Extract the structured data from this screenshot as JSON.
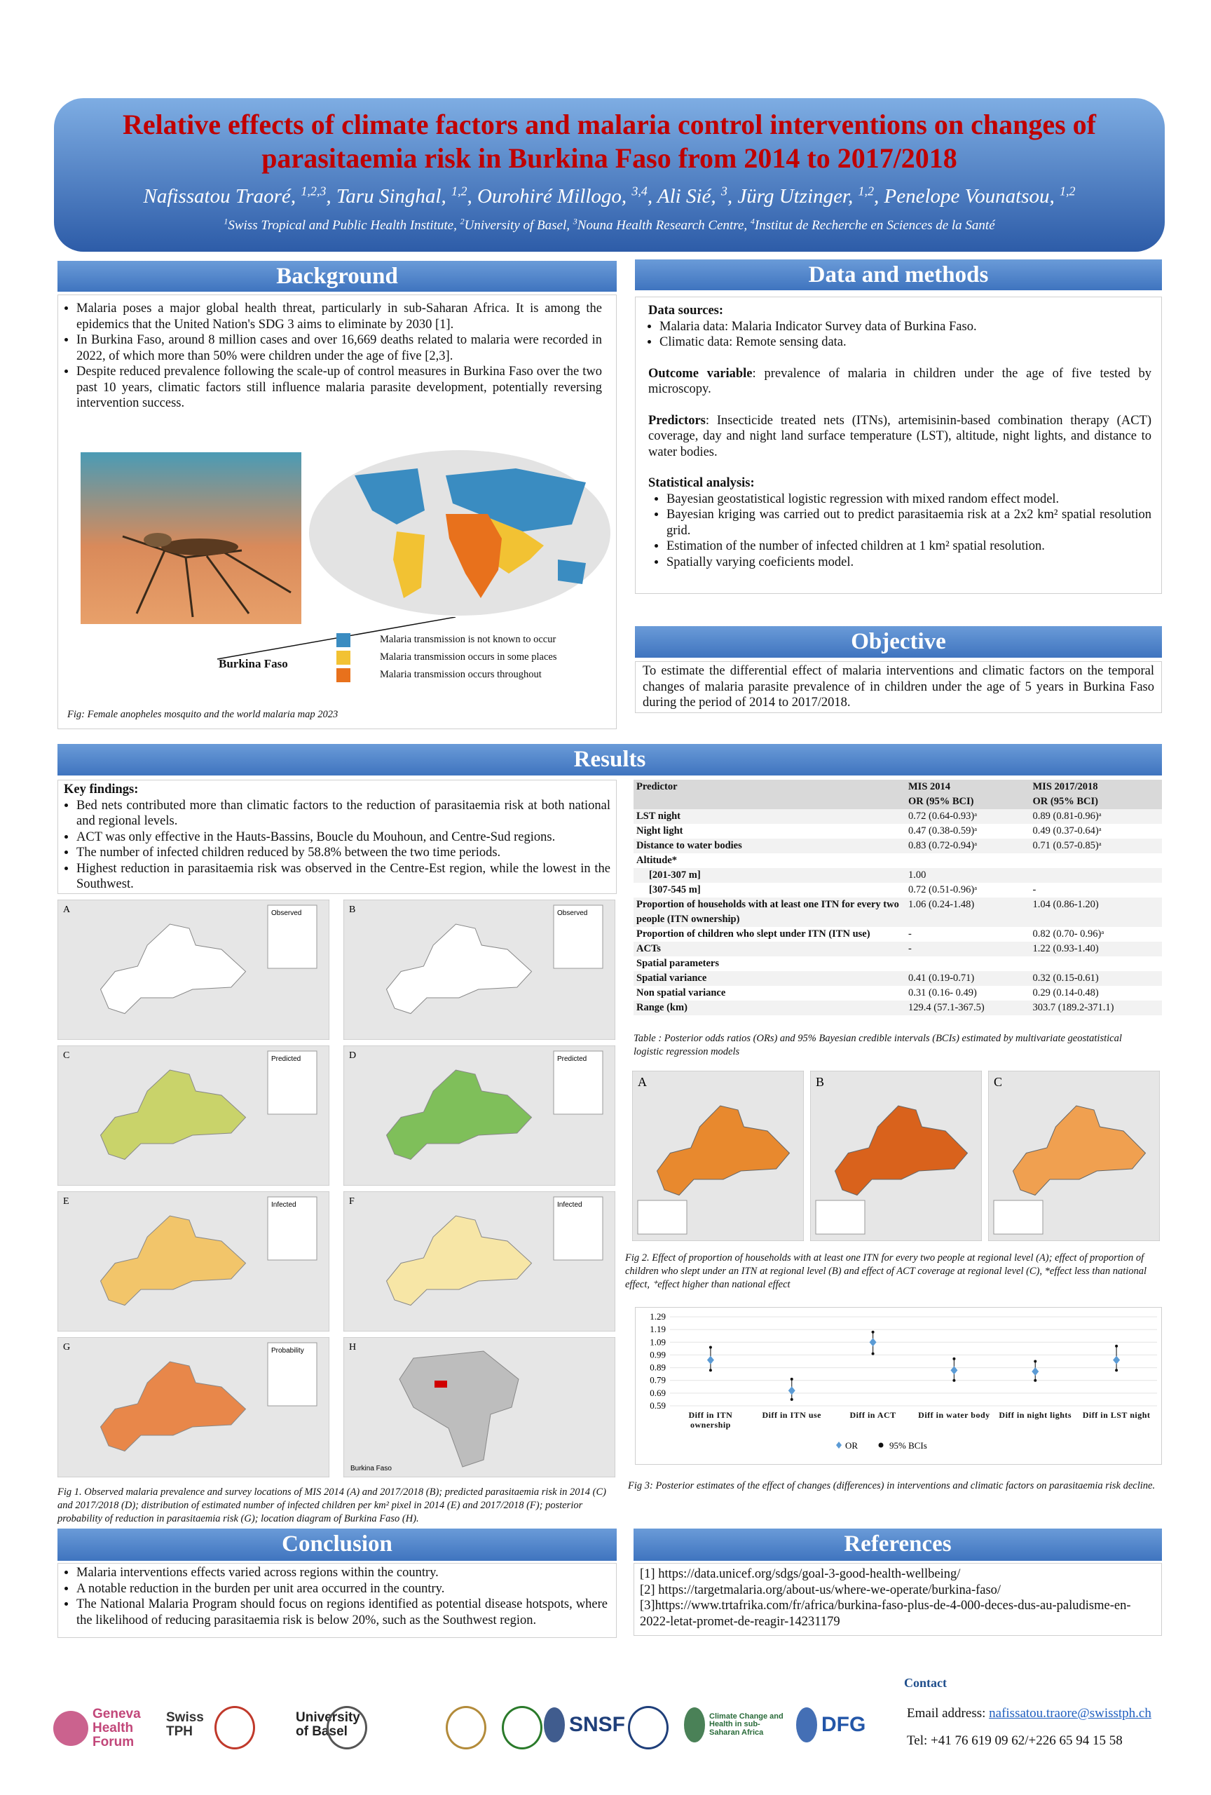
{
  "header": {
    "title": "Relative effects of climate factors and malaria control interventions on changes of parasitaemia risk in Burkina Faso from 2014 to 2017/2018",
    "authors": [
      {
        "name": "Nafissatou Traoré",
        "sup": "1,2,3"
      },
      {
        "name": "Taru Singhal",
        "sup": "1,2"
      },
      {
        "name": "Ourohiré Millogo",
        "sup": "3,4"
      },
      {
        "name": "Ali Sié",
        "sup": "3"
      },
      {
        "name": "Jürg Utzinger",
        "sup": "1,2"
      },
      {
        "name": "Penelope Vounatsou",
        "sup": "1,2"
      }
    ],
    "affiliations": [
      {
        "sup": "1",
        "name": "Swiss Tropical and Public Health Institute"
      },
      {
        "sup": "2",
        "name": "University of Basel"
      },
      {
        "sup": "3",
        "name": "Nouna Health Research Centre"
      },
      {
        "sup": "4",
        "name": "Institut de Recherche en Sciences de la Santé"
      }
    ]
  },
  "background": {
    "title": "Background",
    "bullets": [
      "Malaria poses a major global health threat, particularly in sub-Saharan Africa. It is among the epidemics that the United Nation's SDG 3 aims to eliminate by 2030 [1].",
      "In Burkina Faso, around 8 million cases and over 16,669 deaths related to malaria were recorded in 2022, of which more than 50% were children under the age of five [2,3].",
      "Despite reduced prevalence following the scale-up of control measures in Burkina Faso over the two past 10 years, climatic factors still influence malaria parasite development, potentially reversing intervention success."
    ],
    "figure": {
      "legend": [
        "Malaria transmission is not known to occur",
        "Malaria transmission occurs in some places",
        "Malaria transmission occurs throughout"
      ],
      "legend_colors": [
        "#3a8cc1",
        "#f2c233",
        "#e8711c"
      ],
      "label": "Burkina Faso",
      "caption": "Fig: Female anopheles mosquito and the world malaria map 2023"
    }
  },
  "data_methods": {
    "title": "Data and methods",
    "data_sources": {
      "label": "Data sources:",
      "bullets": [
        "Malaria data: Malaria Indicator Survey data of Burkina Faso.",
        "Climatic data: Remote sensing data."
      ]
    },
    "outcome": {
      "label": "Outcome variable",
      "text": ": prevalence of malaria in children under the age of five tested by microscopy."
    },
    "predictors": {
      "label": "Predictors",
      "text": ": Insecticide treated nets (ITNs), artemisinin-based combination therapy (ACT) coverage, day and night land surface temperature (LST), altitude, night lights, and distance to water bodies."
    },
    "statistical": {
      "label": "Statistical analysis:",
      "bullets": [
        "Bayesian geostatistical logistic regression with mixed random effect model.",
        "Bayesian kriging was carried out to predict parasitaemia risk at a 2x2 km² spatial resolution grid.",
        "Estimation of the number of infected children at 1 km² spatial resolution.",
        "Spatially varying coeficients model."
      ]
    }
  },
  "objective": {
    "title": "Objective",
    "text": "To estimate the differential effect of malaria interventions and climatic factors on the temporal changes of malaria parasite prevalence of in children under the age of 5 years in Burkina Faso during the period of 2014 to 2017/2018."
  },
  "results": {
    "title": "Results",
    "key_findings": {
      "label": "Key findings:",
      "bullets": [
        "Bed nets contributed more than climatic factors to the reduction of parasitaemia risk at both national and regional levels.",
        "ACT was only effective in the Hauts-Bassins, Boucle du Mouhoun, and Centre-Sud regions.",
        "The number of infected children reduced by 58.8% between the two time periods.",
        "Highest reduction in parasitaemia risk was observed in the Centre-Est region, while the lowest in the Southwest."
      ]
    },
    "maps": [
      {
        "letter": "A",
        "legend": "Observed"
      },
      {
        "letter": "B",
        "legend": "Observed"
      },
      {
        "letter": "C",
        "legend": "Predicted"
      },
      {
        "letter": "D",
        "legend": "Predicted"
      },
      {
        "letter": "E",
        "legend": "Infected"
      },
      {
        "letter": "F",
        "legend": "Infected"
      },
      {
        "letter": "G",
        "legend": "Probability"
      },
      {
        "letter": "H",
        "legend": "Burkina Faso"
      }
    ],
    "fig1_caption": "Fig 1. Observed malaria prevalence and survey locations of MIS 2014 (A) and 2017/2018 (B); predicted parasitaemia risk in 2014 (C) and 2017/2018 (D); distribution of estimated number of infected children per km² pixel in 2014 (E) and 2017/2018 (F); posterior probability of reduction in parasitaemia risk (G); location diagram of Burkina Faso (H).",
    "table": {
      "header": [
        "Predictor",
        "MIS 2014",
        "MIS 2017/2018"
      ],
      "subheader": [
        "OR (95% BCI)",
        "OR (95% BCI)"
      ],
      "rows": [
        [
          "LST night",
          "0.72 (0.64-0.93)ᵃ",
          "0.89 (0.81-0.96)ᵃ"
        ],
        [
          "Night light",
          "0.47 (0.38-0.59)ᵃ",
          "0.49 (0.37-0.64)ᵃ"
        ],
        [
          "Distance to water bodies",
          "0.83 (0.72-0.94)ᵃ",
          "0.71 (0.57-0.85)ᵃ"
        ],
        [
          "Altitude*"
        ],
        [
          "[201-307 m]",
          "1.00"
        ],
        [
          "[307-545 m]",
          "0.72 (0.51-0.96)ᵃ",
          "-"
        ],
        [
          "Proportion of households with at least one ITN for every two people (ITN ownership)",
          "1.06 (0.24-1.48)",
          "1.04 (0.86-1.20)"
        ],
        [
          "Proportion of children who slept under ITN (ITN use)",
          "-",
          "0.82 (0.70- 0.96)ᵃ"
        ],
        [
          "ACTs",
          "-",
          "1.22 (0.93-1.40)"
        ],
        [
          "Spatial parameters"
        ],
        [
          "Spatial variance",
          "0.41 (0.19-0.71)",
          "0.32 (0.15-0.61)"
        ],
        [
          "Non spatial variance",
          "0.31 (0.16- 0.49)",
          "0.29 (0.14-0.48)"
        ],
        [
          "Range (km)",
          "129.4 (57.1-367.5)",
          "303.7 (189.2-371.1)"
        ]
      ],
      "caption": "Table : Posterior odds ratios (ORs) and 95% Bayesian credible intervals (BCIs) estimated by multivariate geostatistical logistic regression models"
    },
    "fig2": {
      "panels": [
        "A",
        "B",
        "C"
      ],
      "caption": "Fig 2. Effect of proportion of households with at least one ITN for every two people at regional level (A); effect of proportion of children who slept under an ITN at regional level (B) and effect of ACT coverage at regional level (C), *effect less than national effect, ⁺effect higher than national effect"
    },
    "fig3": {
      "type": "errorbar",
      "categories": [
        "Diff in ITN ownership",
        "Diff in ITN use",
        "Diff in ACT",
        "Diff in water body",
        "Diff in night lights",
        "Diff in LST night"
      ],
      "values": [
        0.95,
        0.71,
        1.09,
        0.87,
        0.86,
        0.95
      ],
      "lower": [
        0.87,
        0.64,
        1.0,
        0.79,
        0.79,
        0.87
      ],
      "upper": [
        1.05,
        0.8,
        1.17,
        0.96,
        0.94,
        1.06
      ],
      "ylim": [
        0.59,
        1.29
      ],
      "yticks": [
        0.59,
        0.69,
        0.79,
        0.89,
        0.99,
        1.09,
        1.19,
        1.29
      ],
      "legend": [
        "OR",
        "95% BCIs"
      ],
      "color": "#5b9bd5",
      "caption": "Fig 3: Posterior estimates of the effect of changes (differences) in interventions and climatic factors on parasitaemia risk decline."
    }
  },
  "conclusion": {
    "title": "Conclusion",
    "bullets": [
      "Malaria interventions effects varied across regions within the country.",
      "A notable reduction in the burden per unit area occurred in the country.",
      "The National Malaria Program should focus on regions identified as potential disease hotspots, where the likelihood of reducing parasitaemia risk is below 20%, such as the Southwest region."
    ]
  },
  "references": {
    "title": "References",
    "items": [
      "[1] https://data.unicef.org/sdgs/goal-3-good-health-wellbeing/",
      "[2] https://targetmalaria.org/about-us/where-we-operate/burkina-faso/",
      "[3]https://www.trtafrika.com/fr/africa/burkina-faso-plus-de-4-000-deces-dus-au-paludisme-en-2022-letat-promet-de-reagir-14231179"
    ]
  },
  "contact": {
    "title": "Contact",
    "email_label": "Email address:",
    "email": "nafissatou.traore@swisstph.ch",
    "tel": "Tel: +41 76 619 09 62/+226 65 94 15 58"
  },
  "logos": [
    "Geneva Health Forum",
    "Swiss TPH",
    "University of Basel",
    "SNSF",
    "Climate Change and Health in sub-Saharan Africa",
    "DFG"
  ]
}
